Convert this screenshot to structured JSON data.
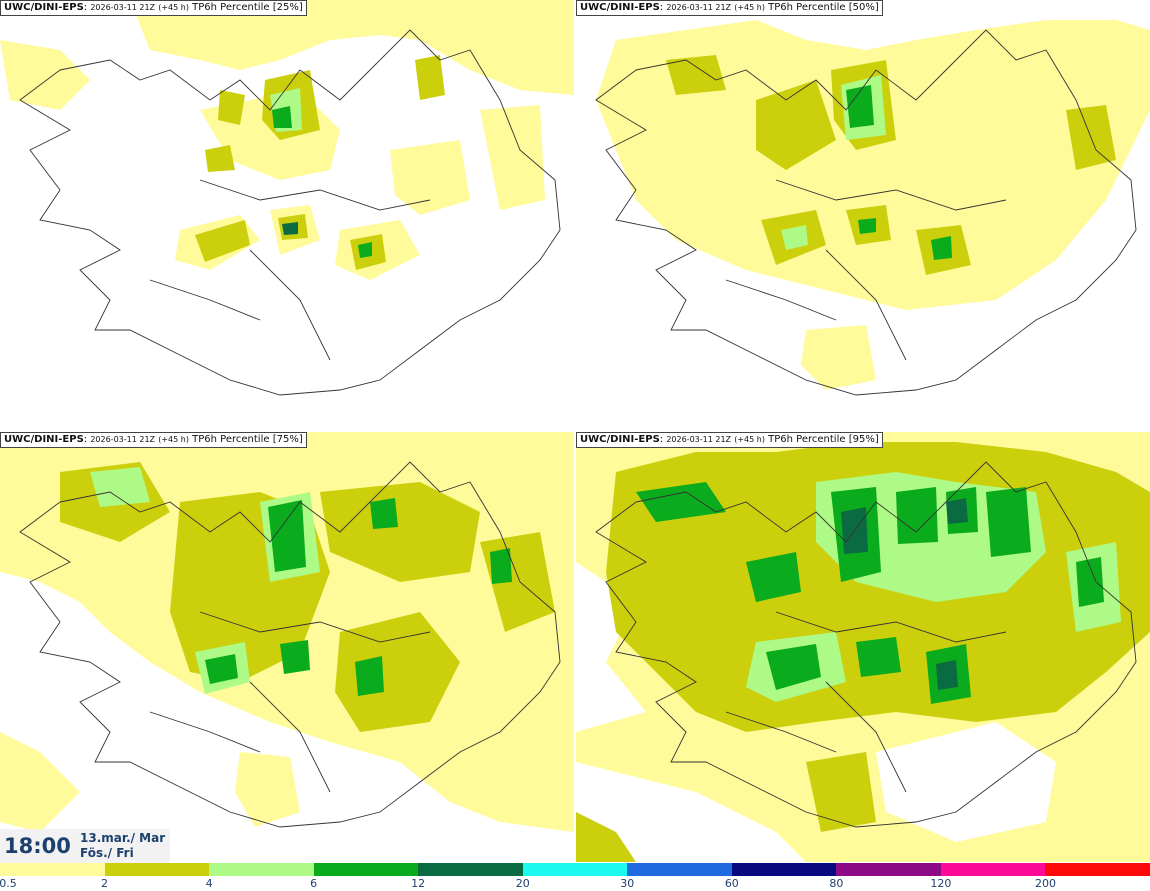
{
  "panels": [
    {
      "model": "UWC/DINI-EPS",
      "run": "2026-03-11 21Z",
      "lead": "(+45 h)",
      "field": "TP6h Percentile [25%]"
    },
    {
      "model": "UWC/DINI-EPS",
      "run": "2026-03-11 21Z",
      "lead": "(+45 h)",
      "field": "TP6h Percentile [50%]"
    },
    {
      "model": "UWC/DINI-EPS",
      "run": "2026-03-11 21Z",
      "lead": "(+45 h)",
      "field": "TP6h Percentile [75%]"
    },
    {
      "model": "UWC/DINI-EPS",
      "run": "2026-03-11 21Z",
      "lead": "(+45 h)",
      "field": "TP6h Percentile [95%]"
    }
  ],
  "valid_time": {
    "time": "18:00",
    "date_line": "13.mar./ Mar",
    "day_line": "Fös./ Fri"
  },
  "colorbar": {
    "ticks": [
      "0.5",
      "2",
      "4",
      "6",
      "12",
      "20",
      "30",
      "60",
      "80",
      "120",
      "200"
    ],
    "colors": [
      "#fffa9a",
      "#ccd00c",
      "#aefa86",
      "#0aab1d",
      "#0a6b42",
      "#1df9ee",
      "#1f6adf",
      "#0a0a80",
      "#8c0a86",
      "#fc0a98",
      "#fc0a0a"
    ]
  },
  "palette": {
    "light": "#fffa9a",
    "olive": "#ccd00c",
    "lightgreen": "#aefa86",
    "green": "#0aab1d",
    "darkgreen": "#0a6b42",
    "coast": "#333333"
  }
}
